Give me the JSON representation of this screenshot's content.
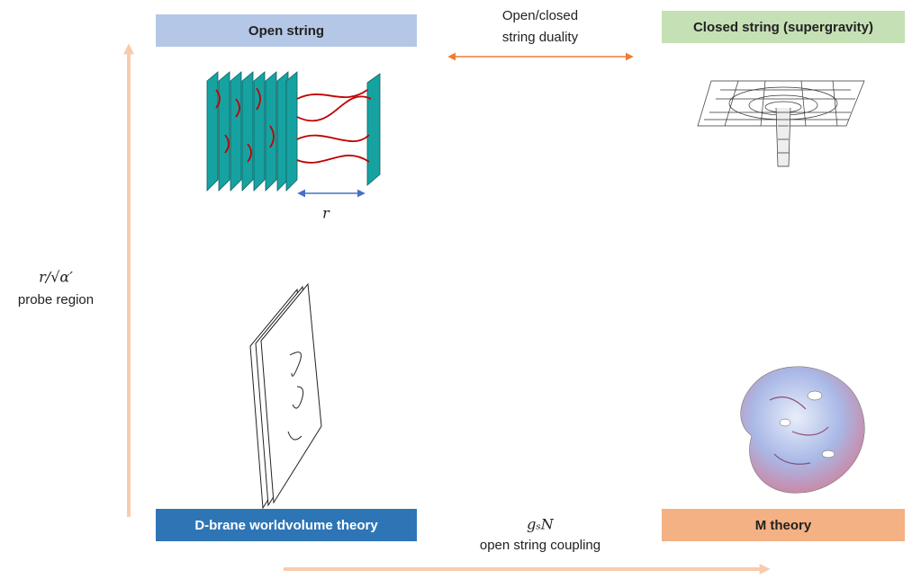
{
  "boxes": {
    "top_left": "Open string",
    "top_right": "Closed string (supergravity)",
    "bottom_left": "D-brane worldvolume theory",
    "bottom_right": "M theory"
  },
  "duality": {
    "lines": [
      "Open/closed",
      "string duality"
    ]
  },
  "separation_label": "r",
  "y_axis": {
    "symbol": "r/√α′",
    "label": "probe region"
  },
  "x_axis": {
    "symbol": "gₛN",
    "label": "open string coupling"
  }
}
